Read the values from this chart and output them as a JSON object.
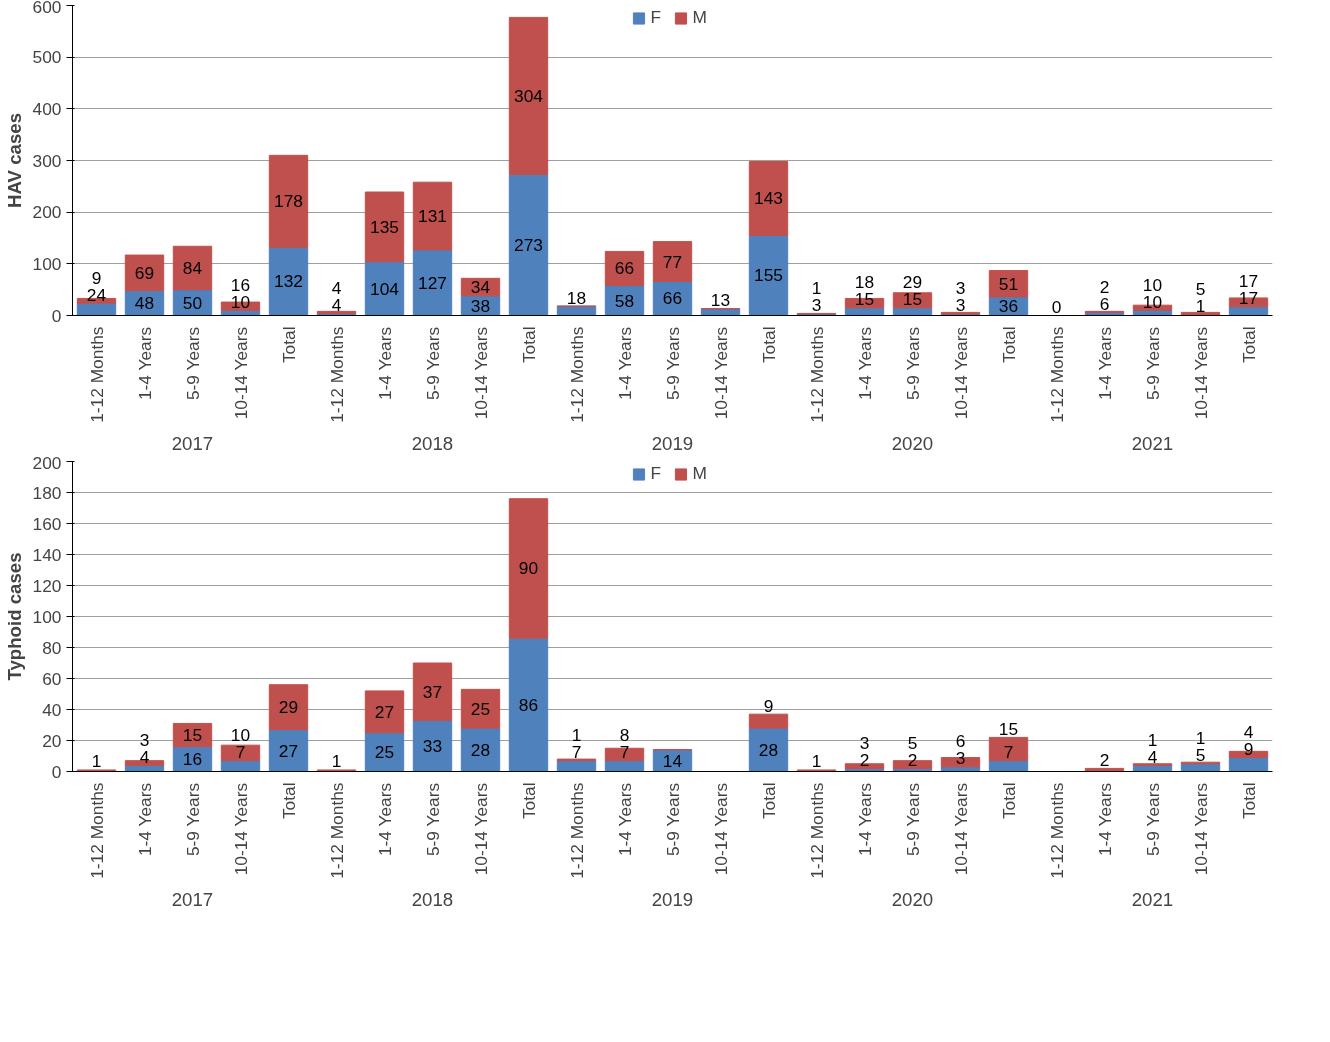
{
  "chart_data": [
    {
      "type": "bar",
      "stacked": true,
      "ylabel": "HAV cases",
      "ylim": [
        0,
        600
      ],
      "yticks": [
        0,
        100,
        200,
        300,
        400,
        500,
        600
      ],
      "grid": "y",
      "legend": "top",
      "categories": [
        "1-12 Months",
        "1-4 Years",
        "5-9 Years",
        "10-14 Years",
        "Total",
        "1-12 Months",
        "1-4 Years",
        "5-9 Years",
        "10-14 Years",
        "Total",
        "1-12 Months",
        "1-4 Years",
        "5-9 Years",
        "10-14 Years",
        "Total",
        "1-12 Months",
        "1-4 Years",
        "5-9 Years",
        "10-14 Years",
        "Total",
        "1-12 Months",
        "1-4 Years",
        "5-9 Years",
        "10-14 Years",
        "Total"
      ],
      "annotations": [
        "2017",
        "2018",
        "2019",
        "2020",
        "2021"
      ],
      "series": [
        {
          "name": "F",
          "color": "#4f81bd",
          "values": [
            24,
            48,
            50,
            10,
            132,
            4,
            104,
            127,
            38,
            273,
            18,
            58,
            66,
            13,
            155,
            3,
            15,
            15,
            3,
            36,
            0,
            6,
            10,
            1,
            17
          ],
          "value_labels": [
            "24",
            "48",
            "50",
            "10",
            "132",
            "4",
            "104",
            "127",
            "38",
            "273",
            "18",
            "58",
            "66",
            "13",
            "155",
            "3",
            "15",
            "15",
            "3",
            "36",
            "0",
            "6",
            "10",
            "1",
            "17"
          ]
        },
        {
          "name": "M",
          "color": "#c0504d",
          "values": [
            9,
            69,
            84,
            16,
            178,
            4,
            135,
            131,
            34,
            304,
            0,
            66,
            77,
            0,
            143,
            1,
            18,
            29,
            3,
            51,
            0,
            2,
            10,
            5,
            17
          ],
          "value_labels": [
            "9",
            "69",
            "84",
            "16",
            "178",
            "4",
            "135",
            "131",
            "34",
            "304",
            null,
            "66",
            "77",
            null,
            "143",
            "1",
            "18",
            "29",
            "3",
            "51",
            null,
            "2",
            "10",
            "5",
            "17"
          ]
        }
      ]
    },
    {
      "type": "bar",
      "stacked": true,
      "ylabel": "Typhoid cases",
      "ylim": [
        0,
        200
      ],
      "yticks": [
        0,
        20,
        40,
        60,
        80,
        100,
        120,
        140,
        160,
        180,
        200
      ],
      "grid": "y",
      "legend": "top",
      "categories": [
        "1-12 Months",
        "1-4 Years",
        "5-9 Years",
        "10-14 Years",
        "Total",
        "1-12 Months",
        "1-4 Years",
        "5-9 Years",
        "10-14 Years",
        "Total",
        "1-12 Months",
        "1-4 Years",
        "5-9 Years",
        "10-14 Years",
        "Total",
        "1-12 Months",
        "1-4 Years",
        "5-9 Years",
        "10-14 Years",
        "Total",
        "1-12 Months",
        "1-4 Years",
        "5-9 Years",
        "10-14 Years",
        "Total"
      ],
      "annotations": [
        "2017",
        "2018",
        "2019",
        "2020",
        "2021"
      ],
      "series": [
        {
          "name": "F",
          "color": "#4f81bd",
          "values": [
            0,
            4,
            16,
            7,
            27,
            0,
            25,
            33,
            28,
            86,
            7,
            7,
            14,
            0,
            28,
            0,
            2,
            2,
            3,
            7,
            0,
            0,
            4,
            5,
            9
          ],
          "value_labels": [
            null,
            "4",
            "16",
            "7",
            "27",
            null,
            "25",
            "33",
            "28",
            "86",
            "7",
            "7",
            "14",
            null,
            "28",
            null,
            "2",
            "2",
            "3",
            "7",
            null,
            null,
            "4",
            "5",
            "9"
          ]
        },
        {
          "name": "M",
          "color": "#c0504d",
          "values": [
            1,
            3,
            15,
            10,
            29,
            1,
            27,
            37,
            25,
            90,
            1,
            8,
            0,
            0,
            9,
            1,
            3,
            5,
            6,
            15,
            0,
            2,
            1,
            1,
            4
          ],
          "value_labels": [
            "1",
            "3",
            "15",
            "10",
            "29",
            "1",
            "27",
            "37",
            "25",
            "90",
            "1",
            "8",
            null,
            null,
            "9",
            "1",
            "3",
            "5",
            "6",
            "15",
            null,
            "2",
            "1",
            "1",
            "4"
          ]
        }
      ]
    }
  ]
}
